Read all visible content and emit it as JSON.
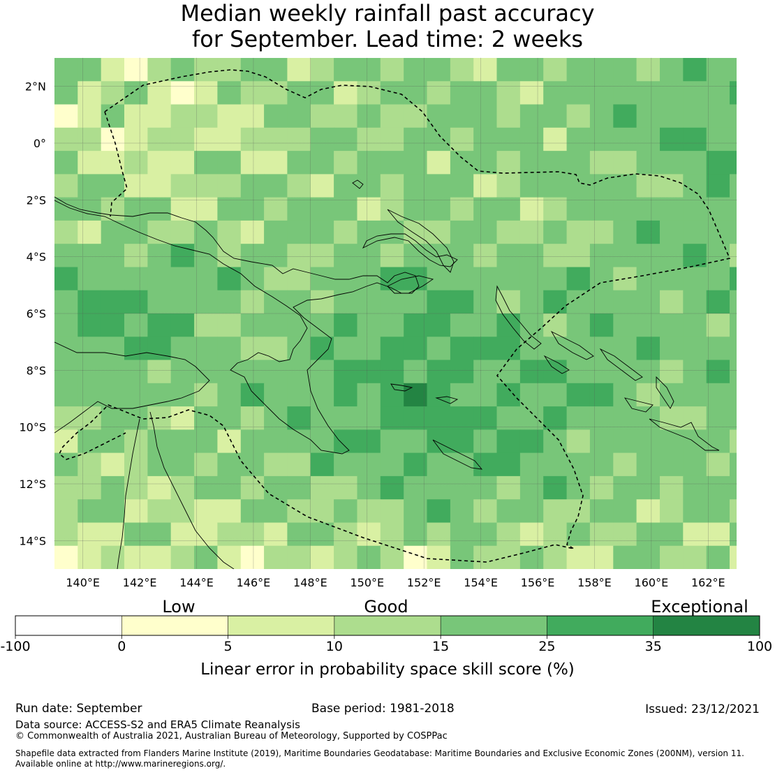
{
  "title_line1": "Median weekly rainfall past accuracy",
  "title_line2": "for September. Lead time: 2 weeks",
  "map": {
    "lat_labels": [
      "2°N",
      "0°",
      "2°S",
      "4°S",
      "6°S",
      "8°S",
      "10°S",
      "12°S",
      "14°S"
    ],
    "lon_labels": [
      "140°E",
      "142°E",
      "144°E",
      "146°E",
      "148°E",
      "150°E",
      "152°E",
      "154°E",
      "156°E",
      "158°E",
      "160°E",
      "162°E"
    ],
    "lat_values": [
      2,
      0,
      -2,
      -4,
      -6,
      -8,
      -10,
      -12,
      -14
    ],
    "lon_values": [
      140,
      142,
      144,
      146,
      148,
      150,
      152,
      154,
      156,
      158,
      160,
      162
    ],
    "lat_range": [
      -15,
      3
    ],
    "lon_range": [
      139,
      163
    ]
  },
  "colorbar": {
    "category_labels": [
      "Low",
      "Good",
      "Exceptional"
    ],
    "tick_labels": [
      "-100",
      "0",
      "5",
      "10",
      "15",
      "25",
      "35",
      "100"
    ],
    "bins": [
      {
        "from": -100,
        "to": 0,
        "color": "#ffffff"
      },
      {
        "from": 0,
        "to": 5,
        "color": "#ffffcc"
      },
      {
        "from": 5,
        "to": 10,
        "color": "#d9f0a3"
      },
      {
        "from": 10,
        "to": 15,
        "color": "#addd8e"
      },
      {
        "from": 15,
        "to": 25,
        "color": "#78c679"
      },
      {
        "from": 25,
        "to": 35,
        "color": "#41ab5d"
      },
      {
        "from": 35,
        "to": 100,
        "color": "#238443"
      }
    ],
    "label": "Linear error in probability space skill score (%)"
  },
  "footer": {
    "run_date": "Run date: September",
    "base_period": "Base period: 1981-2018",
    "issued": "Issued: 23/12/2021",
    "data_source": "Data source: ACCESS-S2 and ERA5 Climate Reanalysis",
    "copyright": "© Commonwealth of Australia 2021, Australian Bureau of Meteorology, Supported by COSPPac",
    "shapefile_line1": "Shapefile data extracted from Flanders Marine Institute (2019), Maritime Boundaries Geodatabase: Maritime Boundaries and Exclusive Economic Zones (200NM), version 11.",
    "shapefile_line2": "Available online at http://www.marineregions.org/."
  }
}
